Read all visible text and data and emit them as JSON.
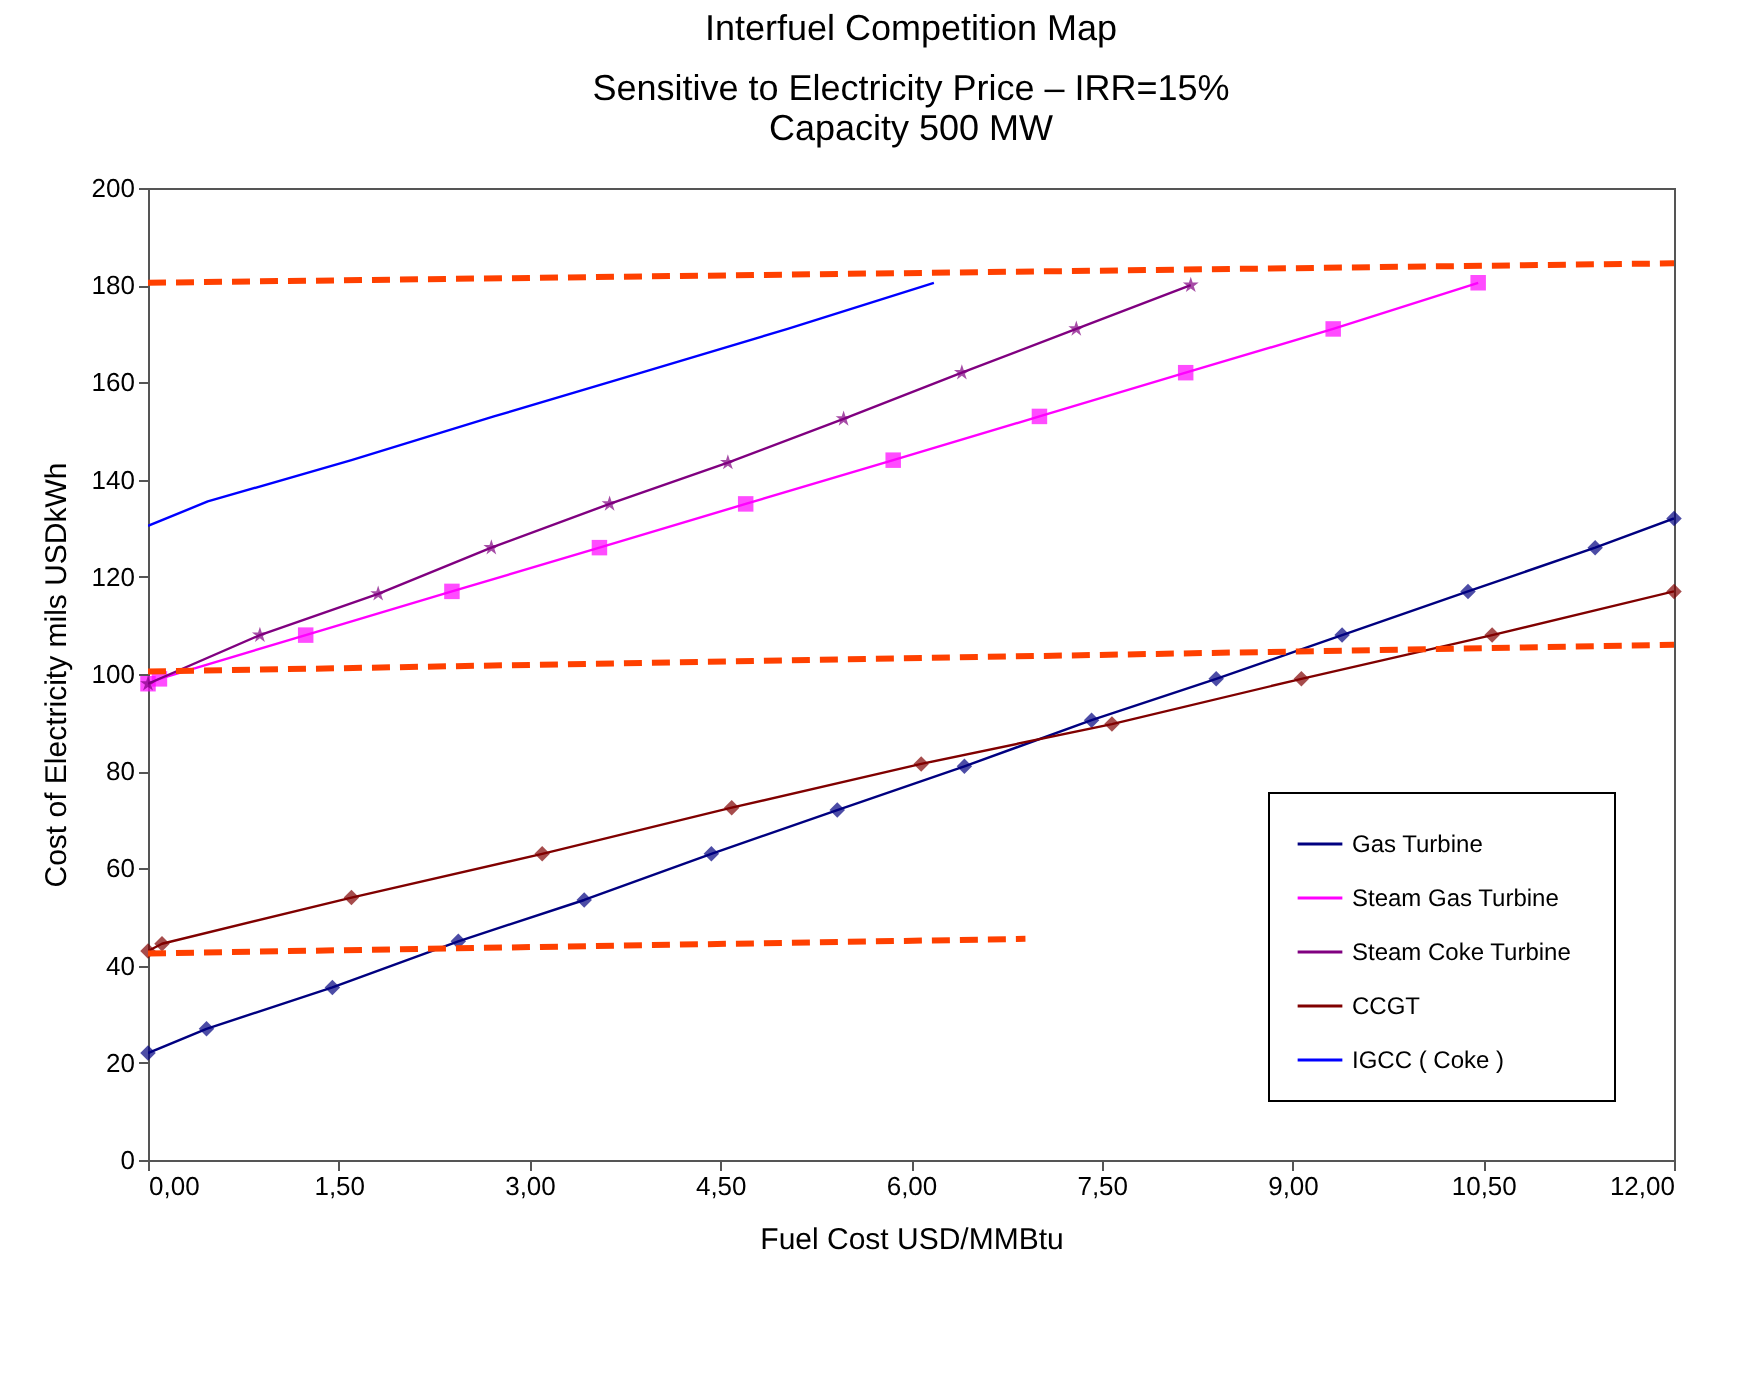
{
  "chart_data": {
    "type": "line",
    "title": "Interfuel Competition Map",
    "subtitle": "Sensitive to Electricity Price – IRR=15%",
    "annotations": [
      "Capacity 500 MW"
    ],
    "xlabel": "Fuel Cost USD/MMBtu",
    "ylabel": "Cost of Electricity mils USDkWh",
    "xlim": [
      0,
      12
    ],
    "ylim": [
      0,
      200
    ],
    "xticks": [
      {
        "value": 0,
        "label": "0,00"
      },
      {
        "value": 1.5,
        "label": "1,50"
      },
      {
        "value": 3,
        "label": "3,00"
      },
      {
        "value": 4.5,
        "label": "4,50"
      },
      {
        "value": 6,
        "label": "6,00"
      },
      {
        "value": 7.5,
        "label": "7,50"
      },
      {
        "value": 9,
        "label": "9,00"
      },
      {
        "value": 10.5,
        "label": "10,50"
      },
      {
        "value": 12,
        "label": "12,00"
      }
    ],
    "yticks": [
      0,
      20,
      40,
      60,
      80,
      100,
      120,
      140,
      160,
      180,
      200
    ],
    "grid": false,
    "legend": "bottom right",
    "series": [
      {
        "name": "Gas Turbine",
        "color": "#000080",
        "marker": "diamond",
        "x": [
          0,
          0.46,
          1.45,
          2.44,
          3.43,
          4.43,
          5.42,
          6.42,
          7.42,
          8.4,
          9.39,
          10.38,
          11.38,
          12
        ],
        "values": [
          22,
          27,
          35.5,
          45,
          53.5,
          63,
          72,
          81,
          90.5,
          99,
          108,
          117,
          126,
          132
        ]
      },
      {
        "name": "Steam  Gas  Turbine",
        "color": "#ff00ff",
        "marker": "square",
        "x": [
          0,
          0.09,
          1.24,
          2.39,
          3.55,
          4.7,
          5.86,
          7.01,
          8.16,
          9.32,
          10.46
        ],
        "values": [
          98,
          99,
          108,
          117,
          126,
          135,
          144,
          153,
          162,
          171,
          180.5
        ]
      },
      {
        "name": "Steam  Coke  Turbine",
        "color": "#800080",
        "marker": "star",
        "x": [
          0,
          0.88,
          1.81,
          2.7,
          3.63,
          4.56,
          5.47,
          6.4,
          7.3,
          8.2
        ],
        "values": [
          98,
          108,
          116.5,
          126,
          135,
          143.5,
          152.5,
          162,
          171,
          180
        ]
      },
      {
        "name": "CCGT",
        "color": "#800000",
        "marker": "diamond",
        "x": [
          0,
          0.11,
          1.6,
          3.1,
          4.59,
          6.08,
          7.58,
          9.07,
          10.57,
          12
        ],
        "values": [
          43,
          44.5,
          54,
          63,
          72.5,
          81.5,
          89.7,
          99,
          108,
          117
        ]
      },
      {
        "name": "IGCC ( Coke )",
        "color": "#0000ff",
        "marker": "none",
        "x": [
          0,
          0.47,
          1.6,
          2.72,
          3.88,
          5.03,
          6.18
        ],
        "values": [
          130.5,
          135.5,
          144,
          153,
          162,
          171,
          180.5
        ]
      },
      {
        "color": "#ff4000",
        "line_style": "dashed",
        "marker": "none",
        "x": [
          0,
          12
        ],
        "values": [
          180.5,
          184.5
        ]
      },
      {
        "color": "#ff4000",
        "line_style": "dashed",
        "marker": "none",
        "x": [
          0,
          12
        ],
        "values": [
          100.5,
          106
        ]
      },
      {
        "color": "#ff4000",
        "line_style": "dashed",
        "marker": "none",
        "x": [
          0,
          6.9
        ],
        "values": [
          42.5,
          45.5
        ]
      }
    ]
  }
}
